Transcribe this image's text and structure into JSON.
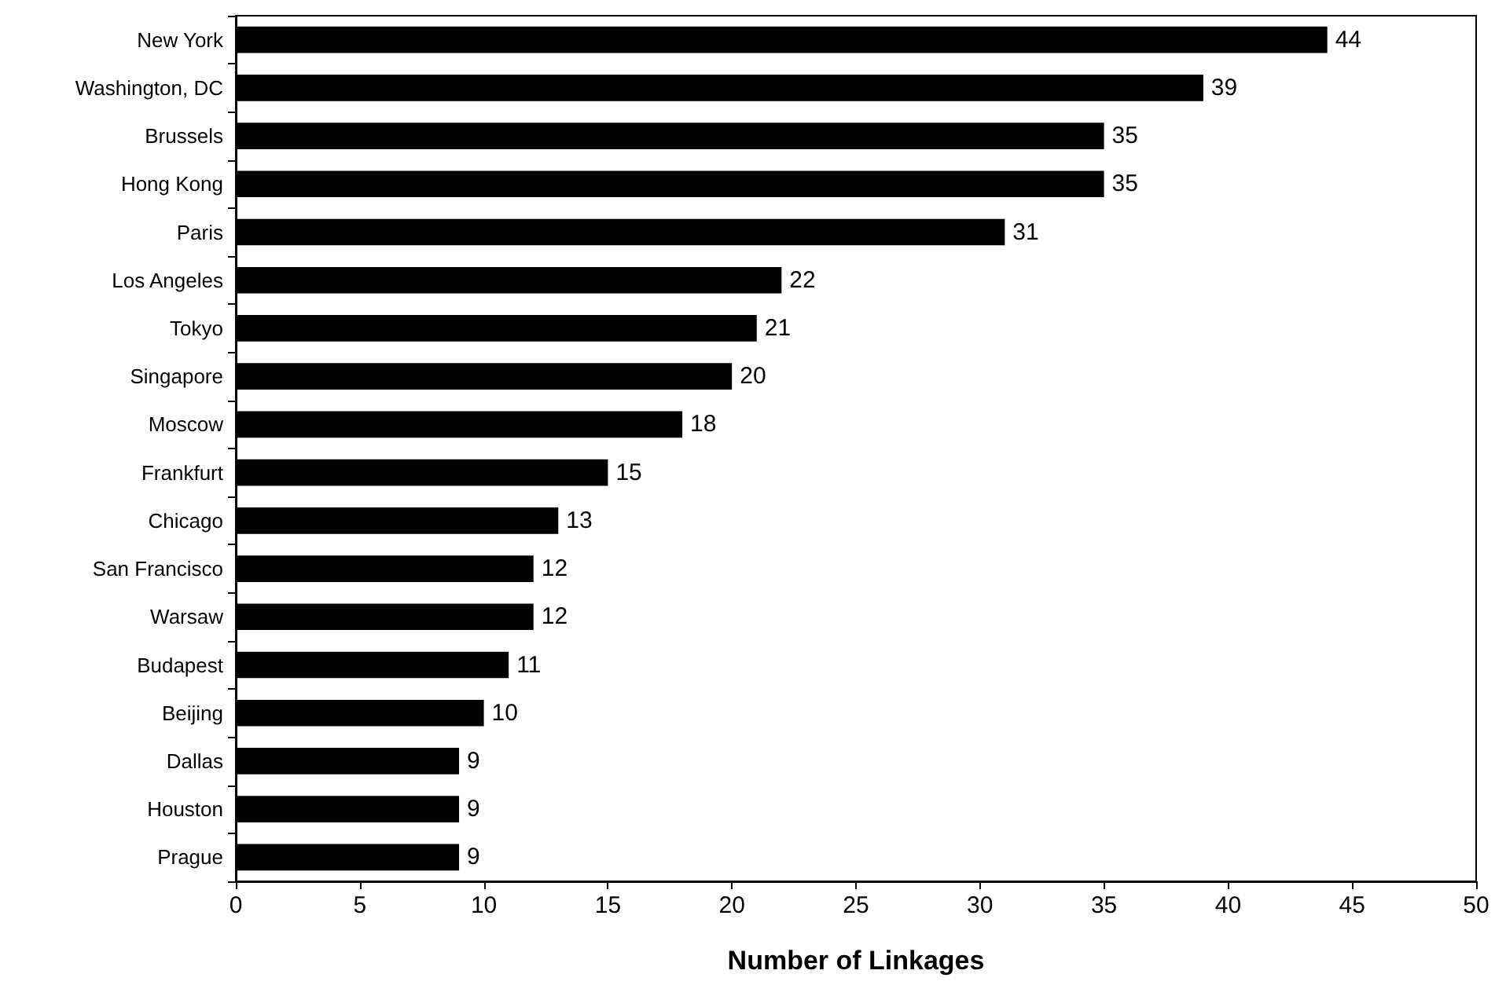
{
  "chart_data": {
    "type": "bar",
    "orientation": "horizontal",
    "xlabel": "Number of Linkages",
    "categories": [
      "New York",
      "Washington, DC",
      "Brussels",
      "Hong Kong",
      "Paris",
      "Los Angeles",
      "Tokyo",
      "Singapore",
      "Moscow",
      "Frankfurt",
      "Chicago",
      "San Francisco",
      "Warsaw",
      "Budapest",
      "Beijing",
      "Dallas",
      "Houston",
      "Prague"
    ],
    "values": [
      44,
      39,
      35,
      35,
      31,
      22,
      21,
      20,
      18,
      15,
      13,
      12,
      12,
      11,
      10,
      9,
      9,
      9
    ],
    "color": "#000000",
    "xlim": [
      0,
      50
    ],
    "xticks": [
      0,
      5,
      10,
      15,
      20,
      25,
      30,
      35,
      40,
      45,
      50
    ],
    "grid": false,
    "data_labels": true
  }
}
